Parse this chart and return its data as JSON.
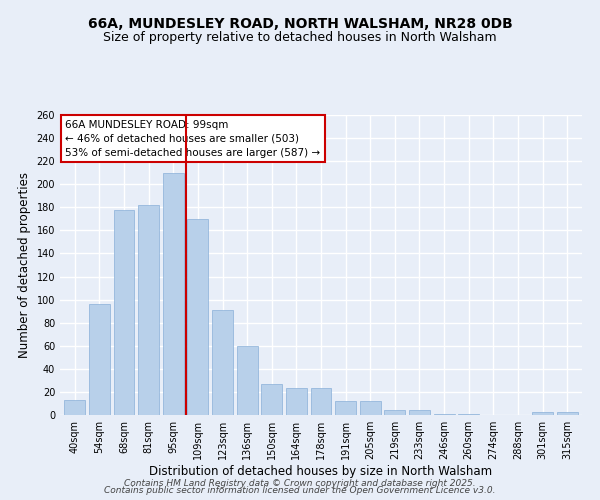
{
  "title": "66A, MUNDESLEY ROAD, NORTH WALSHAM, NR28 0DB",
  "subtitle": "Size of property relative to detached houses in North Walsham",
  "xlabel": "Distribution of detached houses by size in North Walsham",
  "ylabel": "Number of detached properties",
  "bar_labels": [
    "40sqm",
    "54sqm",
    "68sqm",
    "81sqm",
    "95sqm",
    "109sqm",
    "123sqm",
    "136sqm",
    "150sqm",
    "164sqm",
    "178sqm",
    "191sqm",
    "205sqm",
    "219sqm",
    "233sqm",
    "246sqm",
    "260sqm",
    "274sqm",
    "288sqm",
    "301sqm",
    "315sqm"
  ],
  "bar_values": [
    13,
    96,
    178,
    182,
    210,
    170,
    91,
    60,
    27,
    23,
    23,
    12,
    12,
    4,
    4,
    1,
    1,
    0,
    0,
    3,
    3
  ],
  "bar_color": "#b8d0ea",
  "bar_edge_color": "#8ab0d8",
  "reference_line_x": 4.5,
  "reference_line_color": "#cc0000",
  "ylim": [
    0,
    260
  ],
  "yticks": [
    0,
    20,
    40,
    60,
    80,
    100,
    120,
    140,
    160,
    180,
    200,
    220,
    240,
    260
  ],
  "annotation_box_text": "66A MUNDESLEY ROAD: 99sqm\n← 46% of detached houses are smaller (503)\n53% of semi-detached houses are larger (587) →",
  "footer_line1": "Contains HM Land Registry data © Crown copyright and database right 2025.",
  "footer_line2": "Contains public sector information licensed under the Open Government Licence v3.0.",
  "background_color": "#e8eef8",
  "grid_color": "#ffffff",
  "title_fontsize": 10,
  "subtitle_fontsize": 9,
  "axis_label_fontsize": 8.5,
  "tick_fontsize": 7,
  "annotation_fontsize": 7.5,
  "footer_fontsize": 6.5
}
